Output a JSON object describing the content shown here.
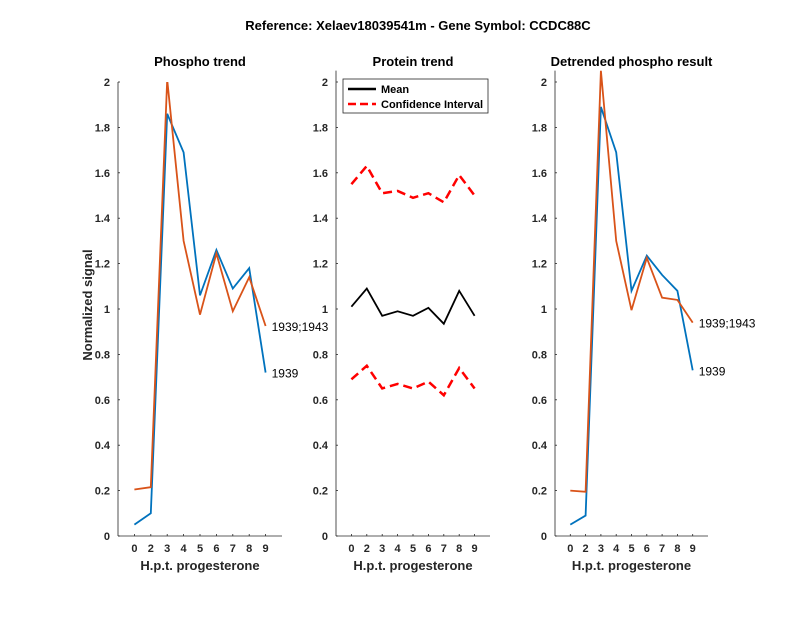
{
  "chart_data": {
    "title": "Reference:  Xelaev18039541m - Gene Symbol:  CCDC88C",
    "type": "line",
    "panels": [
      {
        "title": "Phospho trend",
        "xlabel": "H.p.t. progesterone",
        "ylabel": "Normalized signal",
        "categories": [
          "0",
          "2",
          "3",
          "4",
          "5",
          "6",
          "7",
          "8",
          "9"
        ],
        "ylim": [
          0,
          2
        ],
        "yticks": [
          "0",
          "0.2",
          "0.4",
          "0.6",
          "0.8",
          "1",
          "1.2",
          "1.4",
          "1.6",
          "1.8",
          "2"
        ],
        "series": [
          {
            "name": "1939",
            "color": "#0072BD",
            "dash": false,
            "end_label": "1939",
            "values": [
              0.05,
              0.1,
              1.86,
              1.69,
              1.06,
              1.26,
              1.09,
              1.18,
              0.72
            ]
          },
          {
            "name": "1939;1943",
            "color": "#D95319",
            "dash": false,
            "end_label": "1939;1943",
            "values": [
              0.205,
              0.215,
              2.01,
              1.3,
              0.975,
              1.245,
              0.99,
              1.14,
              0.925
            ]
          }
        ]
      },
      {
        "title": "Protein trend",
        "xlabel": "H.p.t. progesterone",
        "ylabel": "",
        "categories": [
          "0",
          "2",
          "3",
          "4",
          "5",
          "6",
          "7",
          "8",
          "9"
        ],
        "ylim": [
          0,
          2.05
        ],
        "yticks": [
          "0",
          "0.2",
          "0.4",
          "0.6",
          "0.8",
          "1",
          "1.2",
          "1.4",
          "1.6",
          "1.8",
          "2"
        ],
        "legend": {
          "position": "top-right",
          "entries": [
            "Mean",
            "Confidence Interval"
          ]
        },
        "series": [
          {
            "name": "Mean",
            "color": "#000000",
            "dash": false,
            "values": [
              1.01,
              1.09,
              0.97,
              0.99,
              0.97,
              1.005,
              0.935,
              1.08,
              0.97
            ]
          },
          {
            "name": "Confidence Interval upper",
            "color": "#FF0000",
            "dash": true,
            "values": [
              1.55,
              1.63,
              1.51,
              1.52,
              1.49,
              1.51,
              1.47,
              1.59,
              1.5
            ]
          },
          {
            "name": "Confidence Interval lower",
            "color": "#FF0000",
            "dash": true,
            "values": [
              0.69,
              0.75,
              0.65,
              0.67,
              0.65,
              0.68,
              0.62,
              0.74,
              0.65
            ]
          }
        ]
      },
      {
        "title": "Detrended phospho result",
        "xlabel": "H.p.t. progesterone",
        "ylabel": "",
        "categories": [
          "0",
          "2",
          "3",
          "4",
          "5",
          "6",
          "7",
          "8",
          "9"
        ],
        "ylim": [
          0,
          2.05
        ],
        "yticks": [
          "0",
          "0.2",
          "0.4",
          "0.6",
          "0.8",
          "1",
          "1.2",
          "1.4",
          "1.6",
          "1.8",
          "2"
        ],
        "series": [
          {
            "name": "1939",
            "color": "#0072BD",
            "dash": false,
            "end_label": "1939",
            "values": [
              0.05,
              0.09,
              1.89,
              1.69,
              1.08,
              1.235,
              1.15,
              1.08,
              0.73
            ]
          },
          {
            "name": "1939;1943",
            "color": "#D95319",
            "dash": false,
            "end_label": "1939;1943",
            "values": [
              0.2,
              0.195,
              2.05,
              1.3,
              0.995,
              1.225,
              1.05,
              1.04,
              0.94
            ]
          }
        ]
      }
    ]
  }
}
